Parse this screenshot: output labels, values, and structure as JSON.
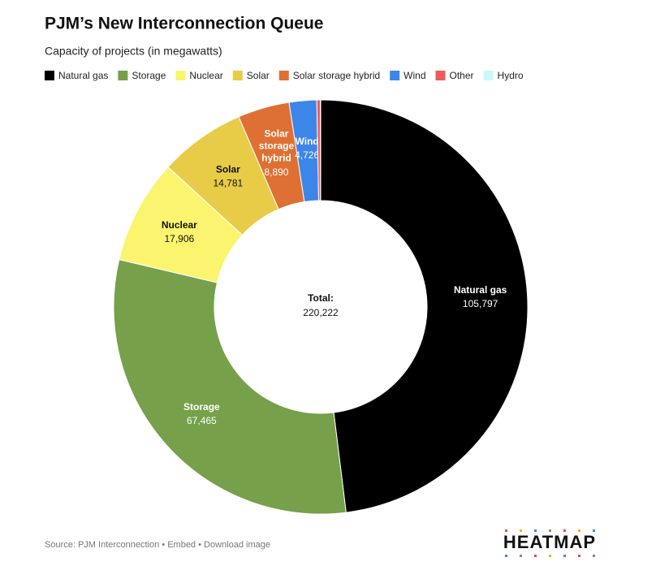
{
  "chart_data": {
    "type": "donut",
    "title": "PJM’s New Interconnection Queue",
    "subtitle": "Capacity of projects (in megawatts)",
    "categories": [
      "Natural gas",
      "Storage",
      "Nuclear",
      "Solar",
      "Solar storage hybrid",
      "Wind",
      "Other",
      "Hydro"
    ],
    "values": [
      105797,
      67465,
      17906,
      14781,
      8890,
      4726,
      600,
      57
    ],
    "value_labels": [
      "105,797",
      "67,465",
      "17,906",
      "14,781",
      "8,890",
      "4,726",
      null,
      null
    ],
    "colors": [
      "#000000",
      "#76a04a",
      "#fbf46e",
      "#e8cc48",
      "#df7034",
      "#3c86ea",
      "#ec5b5b",
      "#c9f8fb"
    ],
    "total_title": "Total:",
    "total": {
      "value": 220222,
      "label": "220,222"
    },
    "source": "Source: PJM Interconnection • Embed  • Download image",
    "brand": "HEATMAP"
  }
}
